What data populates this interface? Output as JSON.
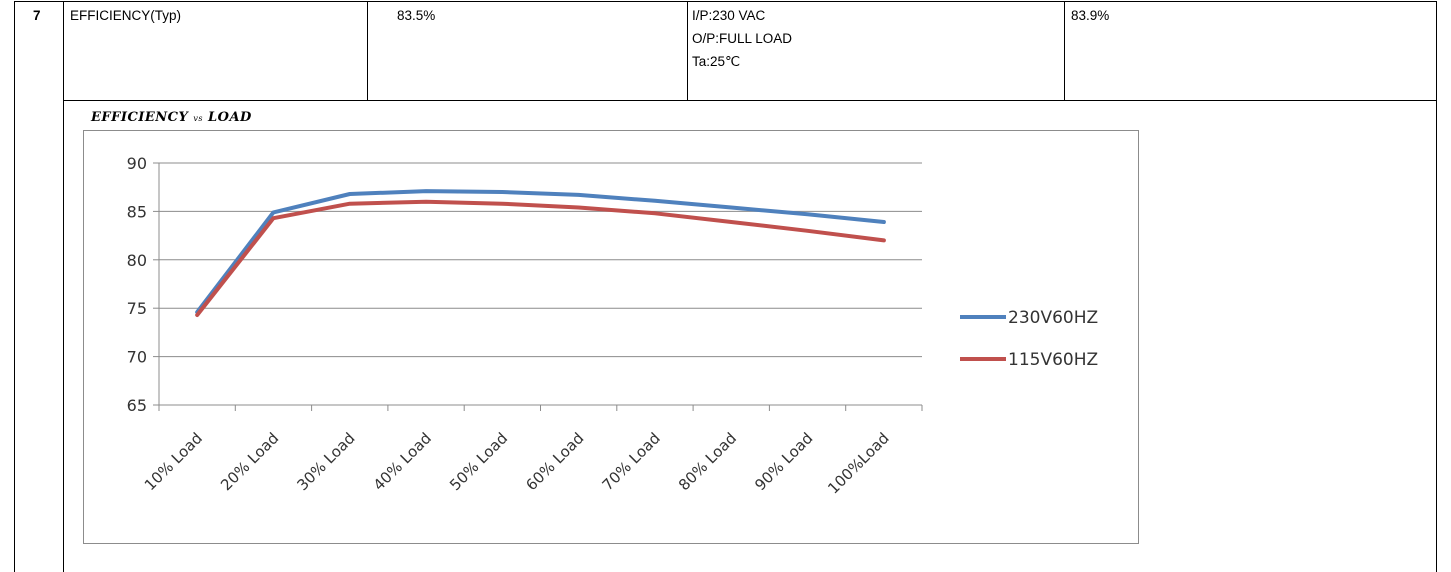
{
  "row": {
    "number": "7",
    "label": "EFFICIENCY(Typ)",
    "value": "83.5%",
    "conditions": [
      "I/P:230 VAC",
      "O/P:FULL LOAD",
      "Ta:25℃"
    ],
    "measured": "83.9%"
  },
  "section_title": {
    "main": "EFFICIENCY",
    "vs": "vs",
    "load": "LOAD"
  },
  "chart_data": {
    "type": "line",
    "categories": [
      "10% Load",
      "20% Load",
      "30% Load",
      "40% Load",
      "50% Load",
      "60% Load",
      "70% Load",
      "80% Load",
      "90% Load",
      "100%Load"
    ],
    "series": [
      {
        "name": "230V60HZ",
        "color": "#4f81bd",
        "values": [
          74.6,
          84.9,
          86.8,
          87.1,
          87.0,
          86.7,
          86.1,
          85.4,
          84.7,
          83.9
        ]
      },
      {
        "name": "115V60HZ",
        "color": "#c0504d",
        "values": [
          74.3,
          84.3,
          85.8,
          86.0,
          85.8,
          85.4,
          84.8,
          83.9,
          83.0,
          82.0
        ]
      }
    ],
    "yticks": [
      "90",
      "85",
      "80",
      "75",
      "70",
      "65"
    ],
    "ylim": [
      65,
      90
    ],
    "grid": true,
    "legend_position": "right"
  }
}
